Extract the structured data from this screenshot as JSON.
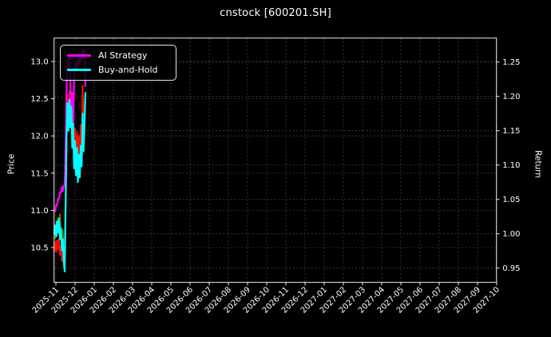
{
  "title": "cnstock [600201.SH]",
  "axes": {
    "left": {
      "label": "Price",
      "tick_labels": [
        "13.0",
        "12.5",
        "12.0",
        "11.5",
        "11.0",
        "10.5"
      ],
      "tick_values": [
        13.0,
        12.5,
        12.0,
        11.5,
        11.0,
        10.5
      ]
    },
    "right": {
      "label": "Return",
      "tick_labels": [
        "1.25",
        "1.20",
        "1.15",
        "1.10",
        "1.05",
        "1.00",
        "0.95"
      ],
      "tick_values": [
        1.25,
        1.2,
        1.15,
        1.1,
        1.05,
        1.0,
        0.95
      ]
    },
    "x": {
      "tick_labels": [
        "2025-11",
        "2025-12",
        "2026-01",
        "2026-02",
        "2026-03",
        "2026-04",
        "2026-05",
        "2026-06",
        "2026-07",
        "2026-08",
        "2026-09",
        "2026-10",
        "2026-11",
        "2026-12",
        "2027-01",
        "2027-02",
        "2027-03",
        "2027-04",
        "2027-05",
        "2027-06",
        "2027-07",
        "2027-08",
        "2027-09",
        "2027-10"
      ]
    }
  },
  "legend": {
    "items": [
      {
        "label": "AI Strategy",
        "color": "#ff00ff"
      },
      {
        "label": "Buy-and-Hold",
        "color": "#00ffff"
      }
    ]
  },
  "colors": {
    "background": "#000000",
    "text": "#ffffff",
    "spine": "#ededed",
    "grid": "#9a9a9a",
    "ai_strategy": "#ff00ff",
    "buy_and_hold": "#00ffff",
    "unlabeled_red": "#ee1100",
    "unlabeled_olive": "#6e6e00"
  },
  "chart_data": {
    "type": "line",
    "title": "cnstock [600201.SH]",
    "grid": "dashed, both axes",
    "legend_position": "upper left",
    "left_axis": {
      "label": "Price",
      "ylim": [
        10.04,
        13.31
      ]
    },
    "right_axis": {
      "label": "Return",
      "ylim": [
        0.93,
        1.285
      ]
    },
    "x_axis_note": "monthly ticks 2025-11 through 2027-10; plotted data occupies only ~2025-10-30 to ~2025-12-16 at far left",
    "x_dates": [
      "2025-10-30",
      "2025-10-31",
      "2025-11-03",
      "2025-11-04",
      "2025-11-05",
      "2025-11-06",
      "2025-11-07",
      "2025-11-10",
      "2025-11-11",
      "2025-11-12",
      "2025-11-13",
      "2025-11-14",
      "2025-11-17",
      "2025-11-18",
      "2025-11-19",
      "2025-11-20",
      "2025-11-21",
      "2025-11-24",
      "2025-11-25",
      "2025-11-26",
      "2025-11-27",
      "2025-11-28",
      "2025-12-01",
      "2025-12-02",
      "2025-12-03",
      "2025-12-04",
      "2025-12-05",
      "2025-12-08",
      "2025-12-09",
      "2025-12-10",
      "2025-12-11",
      "2025-12-12",
      "2025-12-15",
      "2025-12-16"
    ],
    "series": [
      {
        "name": "unlabeled-olive-trace",
        "in_legend": false,
        "axis": "left",
        "color": "#6e6e00",
        "width": 1.8,
        "values": [
          10.8,
          10.62,
          10.85,
          10.66,
          10.9,
          10.7,
          10.95,
          10.72,
          10.6,
          10.74,
          10.5,
          10.55,
          11.25,
          12.28,
          12.52,
          12.22,
          12.58,
          12.25,
          12.48,
          11.92,
          12.28,
          11.68,
          12.08,
          11.62,
          12.02,
          11.6,
          11.98,
          11.65,
          12.12,
          11.82,
          12.65,
          12.08,
          12.38,
          12.55
        ]
      },
      {
        "name": "unlabeled-red-price-trace",
        "in_legend": false,
        "axis": "left",
        "color": "#ee1100",
        "width": 2,
        "values": [
          10.45,
          10.58,
          10.44,
          10.6,
          10.47,
          10.62,
          10.4,
          10.52,
          10.32,
          10.45,
          10.25,
          10.22,
          11.3,
          12.3,
          12.55,
          12.25,
          12.6,
          12.28,
          12.5,
          11.95,
          12.3,
          11.7,
          12.1,
          11.65,
          12.05,
          11.62,
          12.0,
          11.68,
          12.15,
          11.85,
          12.68,
          12.1,
          12.4,
          12.58
        ]
      },
      {
        "name": "AI Strategy",
        "in_legend": true,
        "axis": "right",
        "color": "#ff00ff",
        "width": 2.2,
        "values": [
          1.033,
          1.033,
          1.042,
          1.042,
          1.051,
          1.051,
          1.06,
          1.06,
          1.068,
          1.062,
          1.07,
          1.07,
          1.13,
          1.215,
          1.255,
          1.238,
          1.258,
          1.222,
          1.17,
          1.205,
          1.152,
          1.23,
          1.248,
          1.24,
          1.252,
          1.244,
          1.256,
          1.248,
          1.26,
          1.252,
          1.268,
          1.258,
          1.268,
          1.215
        ]
      },
      {
        "name": "Buy-and-Hold",
        "in_legend": true,
        "axis": "right",
        "color": "#00ffff",
        "width": 2.2,
        "values": [
          1.0,
          1.012,
          0.996,
          1.018,
          1.002,
          1.022,
          0.992,
          1.008,
          0.976,
          0.992,
          0.962,
          0.945,
          1.04,
          1.145,
          1.19,
          1.15,
          1.195,
          1.155,
          1.185,
          1.125,
          1.16,
          1.095,
          1.135,
          1.085,
          1.125,
          1.075,
          1.115,
          1.082,
          1.128,
          1.098,
          1.175,
          1.12,
          1.158,
          1.205
        ]
      }
    ]
  }
}
